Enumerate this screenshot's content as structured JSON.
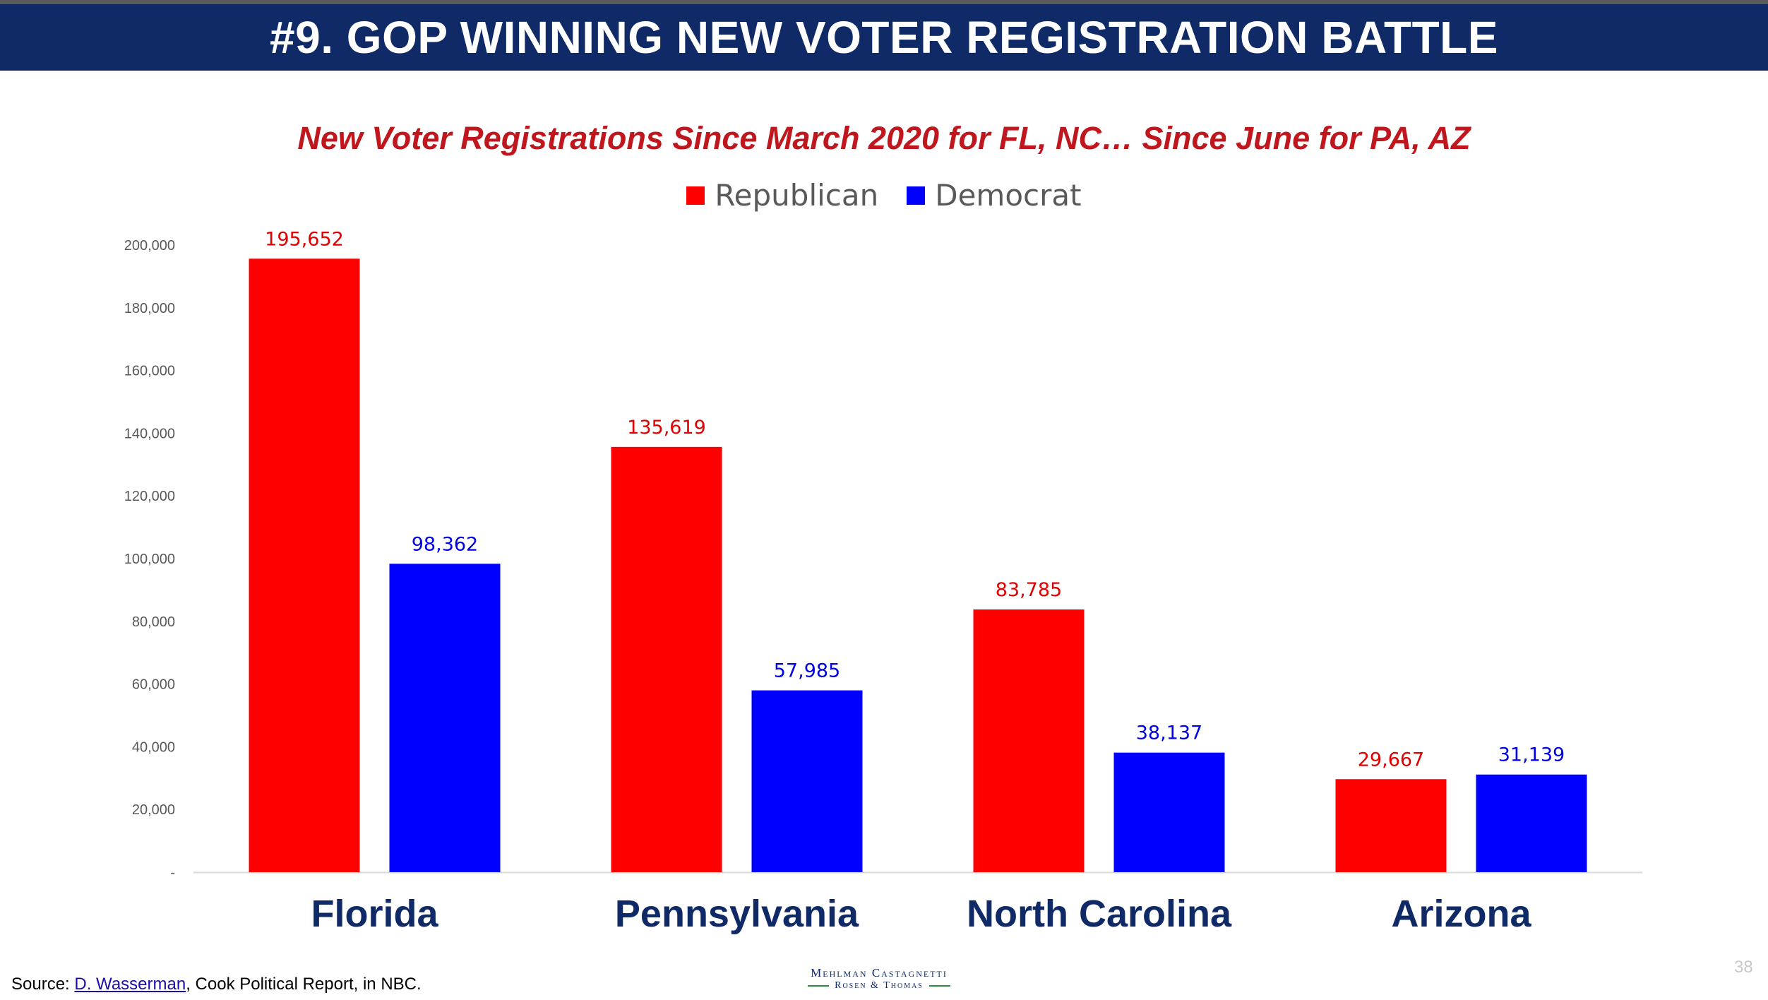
{
  "header": {
    "title": "#9. GOP WINNING NEW VOTER REGISTRATION BATTLE"
  },
  "chart_data": {
    "type": "bar",
    "title": "New Voter Registrations Since March 2020 for FL, NC… Since June for PA, AZ",
    "categories": [
      "Florida",
      "Pennsylvania",
      "North Carolina",
      "Arizona"
    ],
    "series": [
      {
        "name": "Republican",
        "color": "#ff0000",
        "label_color": "#e00000",
        "values": [
          195652,
          135619,
          83785,
          29667
        ]
      },
      {
        "name": "Democrat",
        "color": "#0000ff",
        "label_color": "#0000e6",
        "values": [
          98362,
          57985,
          38137,
          31139
        ]
      }
    ],
    "data_labels": [
      [
        "195,652",
        "135,619",
        "83,785",
        "29,667"
      ],
      [
        "98,362",
        "57,985",
        "38,137",
        "31,139"
      ]
    ],
    "ylim": [
      0,
      200000
    ],
    "yticks": [
      0,
      20000,
      40000,
      60000,
      80000,
      100000,
      120000,
      140000,
      160000,
      180000,
      200000
    ],
    "ytick_labels": [
      "-",
      "20,000",
      "40,000",
      "60,000",
      "80,000",
      "100,000",
      "120,000",
      "140,000",
      "160,000",
      "180,000",
      "200,000"
    ],
    "legend_position": "top-center",
    "grid": false
  },
  "footer": {
    "source_prefix": "Source: ",
    "source_link": "D. Wasserman",
    "source_suffix": ", Cook Political Report, in NBC.",
    "logo_line1": "Mehlman Castagnetti",
    "logo_line2": "Rosen & Thomas",
    "page_number": "38"
  }
}
